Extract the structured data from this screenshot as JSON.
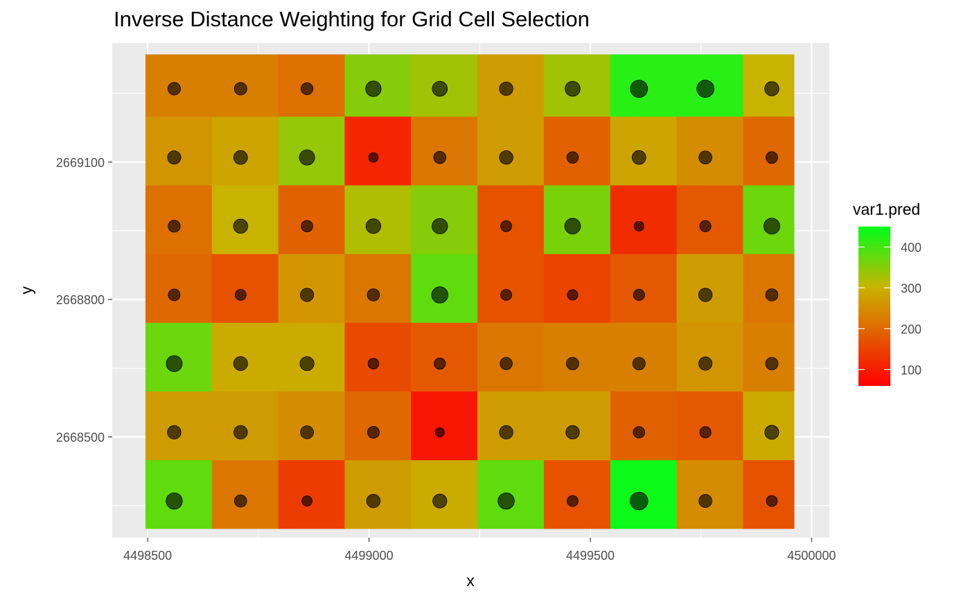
{
  "chart_data": {
    "type": "heatmap",
    "title": "Inverse Distance Weighting for Grid Cell Selection",
    "xlabel": "x",
    "ylabel": "y",
    "xlim": [
      4498420,
      4500040
    ],
    "ylim": [
      2668280,
      2669360
    ],
    "x_ticks": [
      4498500,
      4499000,
      4499500,
      4500000
    ],
    "x_tick_labels": [
      "4498500",
      "4499000",
      "4499500",
      "4500000"
    ],
    "y_ticks": [
      2668500,
      2668800,
      2669100
    ],
    "y_tick_labels": [
      "2668500",
      "2668800",
      "2669100"
    ],
    "grid": true,
    "legend": {
      "title": "var1.pred",
      "position": "right",
      "min": 60,
      "max": 450,
      "ticks": [
        100,
        200,
        300,
        400
      ],
      "tick_labels": [
        "100",
        "200",
        "300",
        "400"
      ],
      "low_color": "#ff0000",
      "mid_color": "#c8b400",
      "high_color": "#00ff1a"
    },
    "cell_x_edges": [
      4498495,
      4498645,
      4498795,
      4498945,
      4499095,
      4499245,
      4499395,
      4499545,
      4499695,
      4499845,
      4499960
    ],
    "cell_y_edges": [
      2668300,
      2668450,
      2668600,
      2668750,
      2668900,
      2669050,
      2669200,
      2669335
    ],
    "points_x": [
      4498560,
      4498710,
      4498860,
      4499010,
      4499160,
      4499310,
      4499460,
      4499610,
      4499760,
      4499910
    ],
    "points_y": [
      2668360,
      2668510,
      2668660,
      2668810,
      2668960,
      2669110,
      2669260
    ],
    "values": [
      [
        380,
        220,
        140,
        270,
        290,
        380,
        170,
        440,
        250,
        170
      ],
      [
        270,
        270,
        250,
        200,
        90,
        270,
        270,
        190,
        180,
        290
      ],
      [
        370,
        290,
        290,
        160,
        180,
        220,
        230,
        230,
        260,
        230
      ],
      [
        200,
        170,
        260,
        220,
        380,
        170,
        150,
        180,
        270,
        220
      ],
      [
        210,
        300,
        190,
        320,
        350,
        170,
        360,
        120,
        180,
        370
      ],
      [
        260,
        280,
        340,
        110,
        220,
        270,
        190,
        280,
        250,
        200
      ],
      [
        230,
        230,
        210,
        350,
        330,
        270,
        330,
        420,
        420,
        300
      ]
    ]
  }
}
